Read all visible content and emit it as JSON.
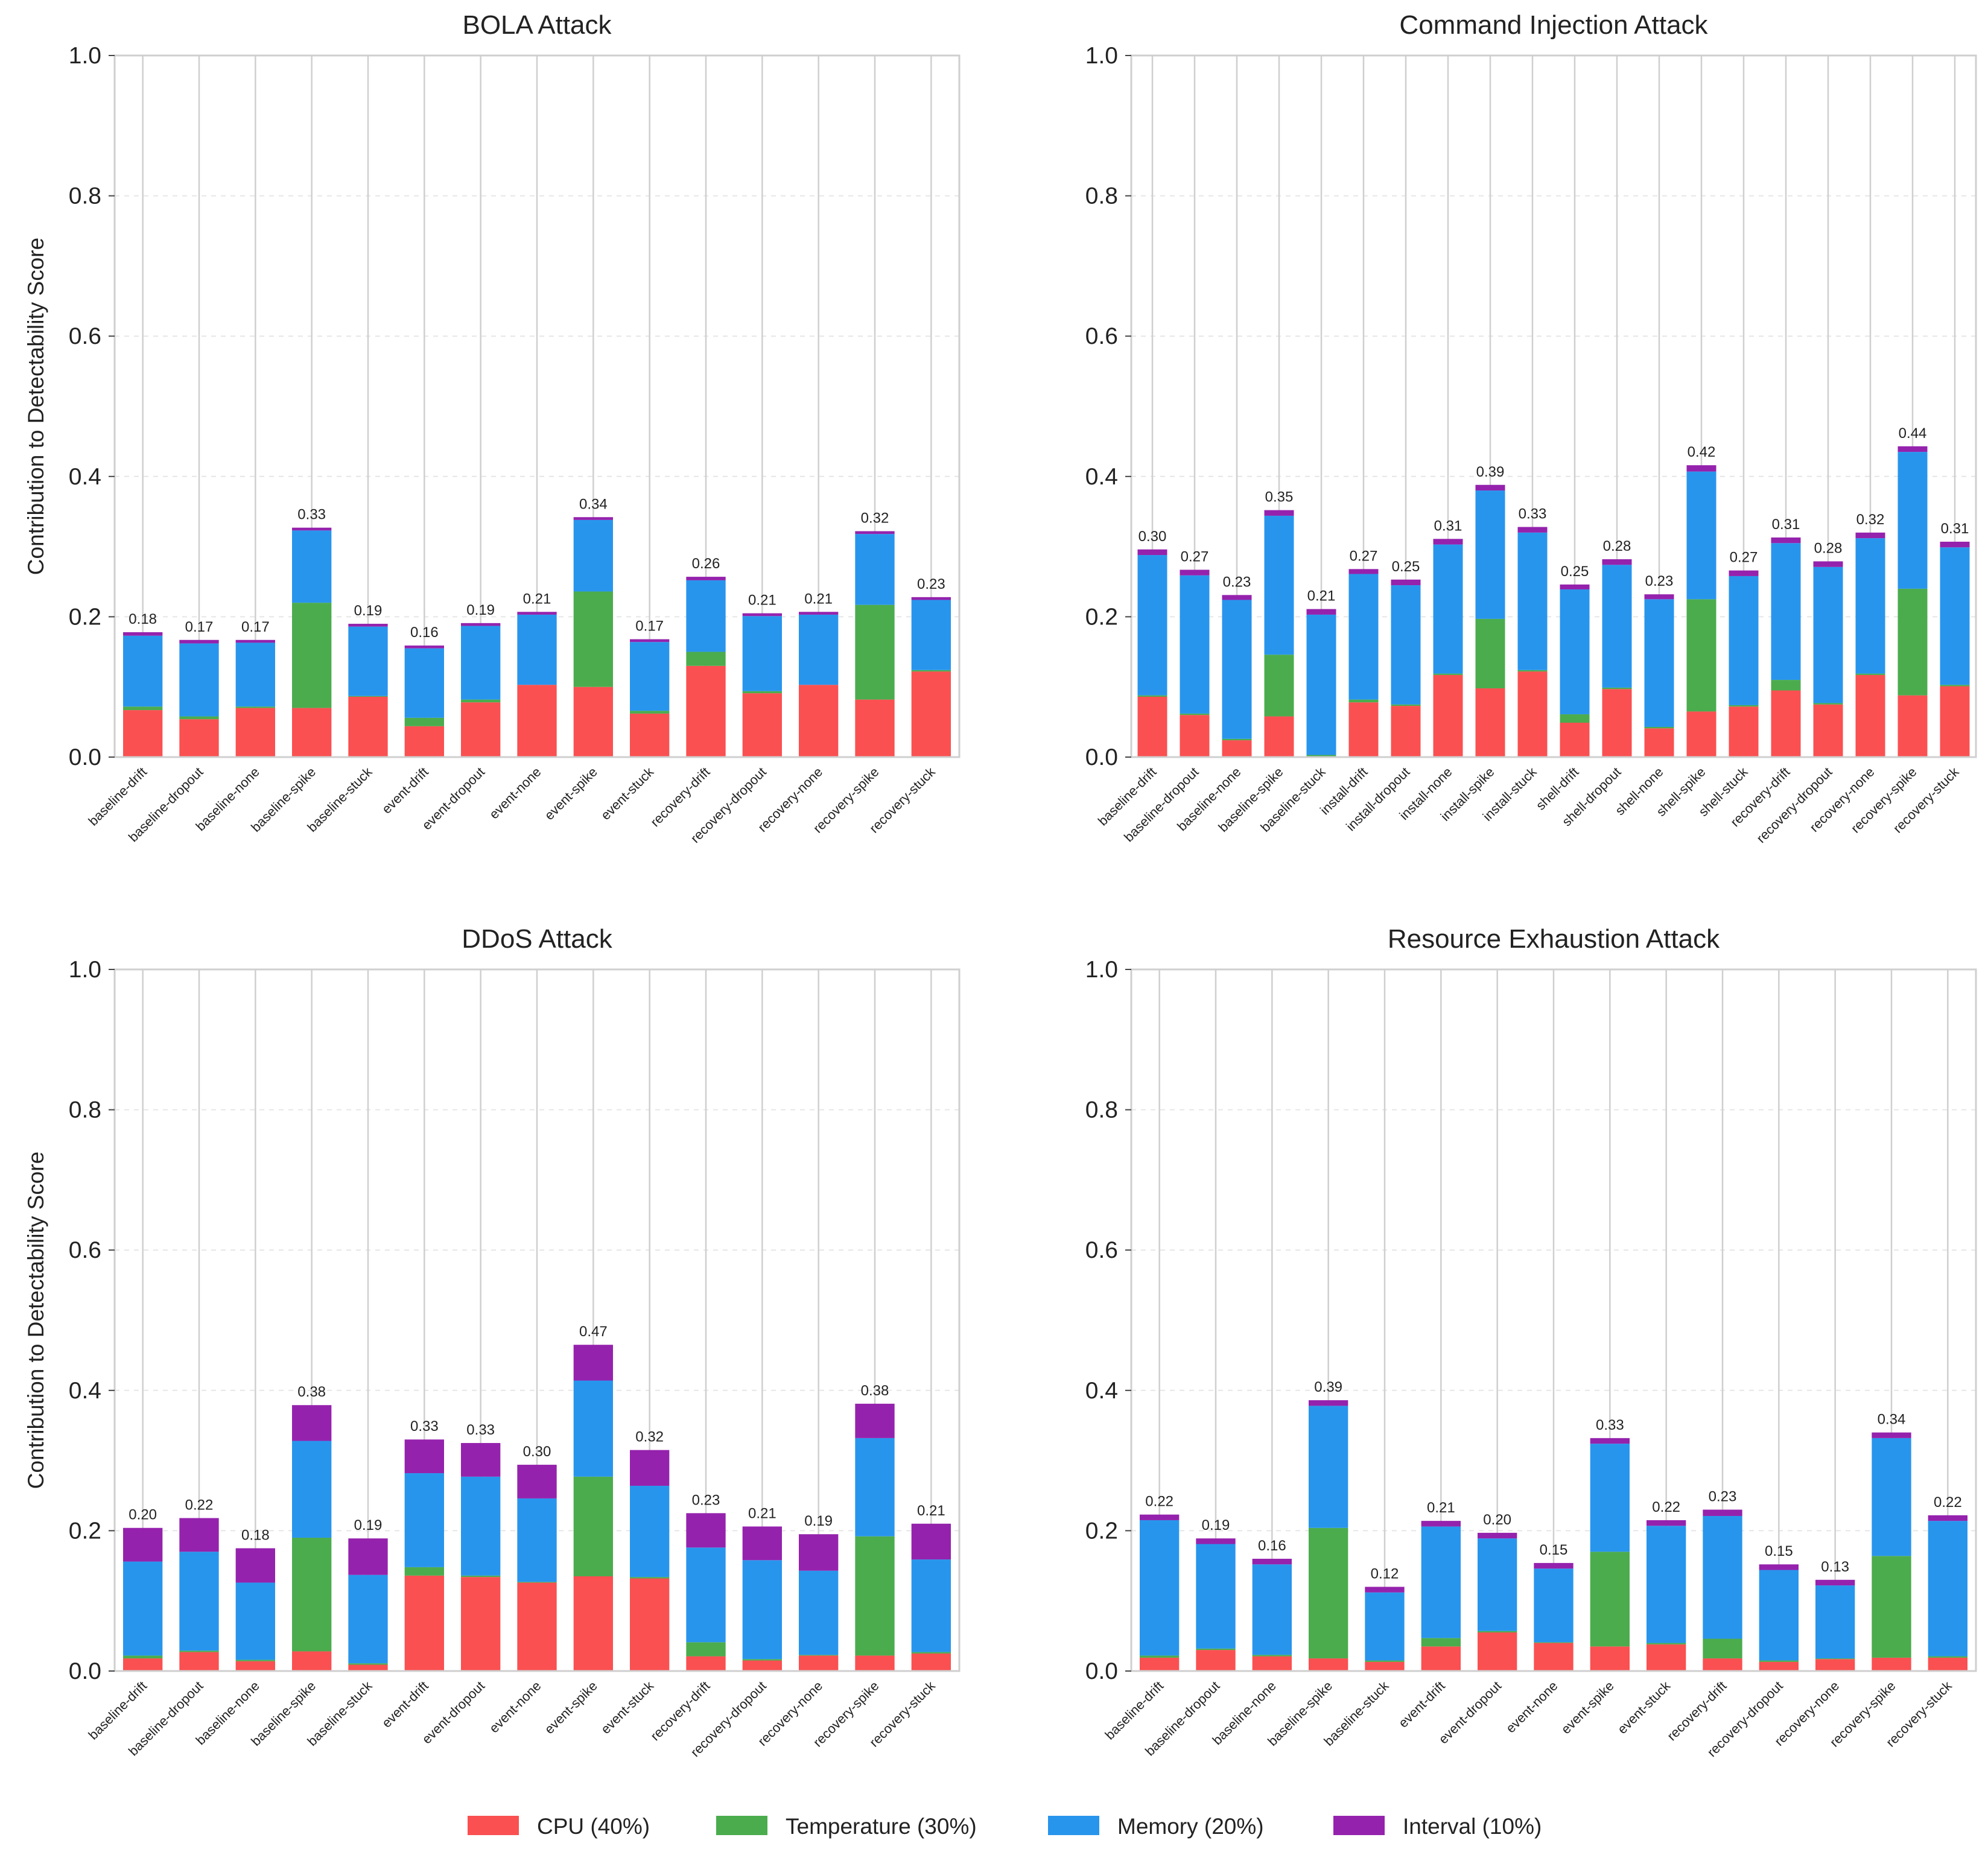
{
  "chart_data": [
    {
      "type": "bar",
      "stacked": true,
      "title": "BOLA Attack",
      "ylabel": "Contribution to Detectability Score",
      "xlabel": "",
      "ylim": [
        0,
        1.0
      ],
      "yticks": [
        "0.0",
        "0.2",
        "0.4",
        "0.6",
        "0.8",
        "1.0"
      ],
      "categories": [
        "baseline-drift",
        "baseline-dropout",
        "baseline-none",
        "baseline-spike",
        "baseline-stuck",
        "event-drift",
        "event-dropout",
        "event-none",
        "event-spike",
        "event-stuck",
        "recovery-drift",
        "recovery-dropout",
        "recovery-none",
        "recovery-spike",
        "recovery-stuck"
      ],
      "series": [
        {
          "name": "CPU (40%)",
          "values": [
            0.067,
            0.054,
            0.07,
            0.07,
            0.086,
            0.044,
            0.078,
            0.103,
            0.1,
            0.062,
            0.13,
            0.091,
            0.103,
            0.082,
            0.122
          ]
        },
        {
          "name": "Temperature (30%)",
          "values": [
            0.005,
            0.004,
            0.002,
            0.15,
            0.001,
            0.012,
            0.004,
            0.0,
            0.136,
            0.004,
            0.02,
            0.003,
            0.0,
            0.135,
            0.002
          ]
        },
        {
          "name": "Memory (20%)",
          "values": [
            0.101,
            0.104,
            0.091,
            0.103,
            0.099,
            0.099,
            0.105,
            0.1,
            0.102,
            0.098,
            0.102,
            0.107,
            0.1,
            0.101,
            0.1
          ]
        },
        {
          "name": "Interval (10%)",
          "values": [
            0.005,
            0.005,
            0.004,
            0.004,
            0.004,
            0.004,
            0.004,
            0.004,
            0.004,
            0.004,
            0.005,
            0.004,
            0.004,
            0.004,
            0.004
          ]
        }
      ],
      "totals": [
        "0.18",
        "0.17",
        "0.17",
        "0.33",
        "0.19",
        "0.16",
        "0.19",
        "0.21",
        "0.34",
        "0.17",
        "0.26",
        "0.21",
        "0.21",
        "0.32",
        "0.23"
      ]
    },
    {
      "type": "bar",
      "stacked": true,
      "title": "Command Injection Attack",
      "ylabel": "",
      "xlabel": "",
      "ylim": [
        0,
        1.0
      ],
      "yticks": [
        "0.0",
        "0.2",
        "0.4",
        "0.6",
        "0.8",
        "1.0"
      ],
      "categories": [
        "baseline-drift",
        "baseline-dropout",
        "baseline-none",
        "baseline-spike",
        "baseline-stuck",
        "install-drift",
        "install-dropout",
        "install-none",
        "install-spike",
        "install-stuck",
        "shell-drift",
        "shell-dropout",
        "shell-none",
        "shell-spike",
        "shell-stuck",
        "recovery-drift",
        "recovery-dropout",
        "recovery-none",
        "recovery-spike",
        "recovery-stuck"
      ],
      "series": [
        {
          "name": "CPU (40%)",
          "values": [
            0.086,
            0.06,
            0.024,
            0.058,
            0.001,
            0.078,
            0.073,
            0.117,
            0.098,
            0.122,
            0.049,
            0.097,
            0.041,
            0.065,
            0.072,
            0.095,
            0.075,
            0.117,
            0.088,
            0.101
          ]
        },
        {
          "name": "Temperature (30%)",
          "values": [
            0.002,
            0.002,
            0.002,
            0.088,
            0.002,
            0.004,
            0.002,
            0.002,
            0.099,
            0.002,
            0.012,
            0.002,
            0.002,
            0.16,
            0.002,
            0.015,
            0.002,
            0.002,
            0.152,
            0.002
          ]
        },
        {
          "name": "Memory (20%)",
          "values": [
            0.2,
            0.197,
            0.198,
            0.198,
            0.2,
            0.179,
            0.17,
            0.184,
            0.183,
            0.196,
            0.178,
            0.175,
            0.182,
            0.182,
            0.184,
            0.195,
            0.194,
            0.193,
            0.195,
            0.196
          ]
        },
        {
          "name": "Interval (10%)",
          "values": [
            0.008,
            0.008,
            0.007,
            0.008,
            0.008,
            0.007,
            0.008,
            0.008,
            0.008,
            0.008,
            0.007,
            0.008,
            0.007,
            0.009,
            0.008,
            0.008,
            0.008,
            0.008,
            0.008,
            0.008
          ]
        }
      ],
      "totals": [
        "0.30",
        "0.27",
        "0.23",
        "0.35",
        "0.21",
        "0.27",
        "0.25",
        "0.31",
        "0.39",
        "0.33",
        "0.25",
        "0.28",
        "0.23",
        "0.42",
        "0.27",
        "0.31",
        "0.28",
        "0.32",
        "0.44",
        "0.31"
      ]
    },
    {
      "type": "bar",
      "stacked": true,
      "title": "DDoS Attack",
      "ylabel": "Contribution to Detectability Score",
      "xlabel": "",
      "ylim": [
        0,
        1.0
      ],
      "yticks": [
        "0.0",
        "0.2",
        "0.4",
        "0.6",
        "0.8",
        "1.0"
      ],
      "categories": [
        "baseline-drift",
        "baseline-dropout",
        "baseline-none",
        "baseline-spike",
        "baseline-stuck",
        "event-drift",
        "event-dropout",
        "event-none",
        "event-spike",
        "event-stuck",
        "recovery-drift",
        "recovery-dropout",
        "recovery-none",
        "recovery-spike",
        "recovery-stuck"
      ],
      "series": [
        {
          "name": "CPU (40%)",
          "values": [
            0.018,
            0.027,
            0.014,
            0.028,
            0.009,
            0.136,
            0.134,
            0.126,
            0.135,
            0.132,
            0.021,
            0.015,
            0.022,
            0.022,
            0.025
          ]
        },
        {
          "name": "Temperature (30%)",
          "values": [
            0.004,
            0.002,
            0.002,
            0.162,
            0.002,
            0.012,
            0.002,
            0.001,
            0.142,
            0.002,
            0.02,
            0.002,
            0.001,
            0.17,
            0.002
          ]
        },
        {
          "name": "Memory (20%)",
          "values": [
            0.134,
            0.141,
            0.11,
            0.138,
            0.126,
            0.134,
            0.141,
            0.119,
            0.137,
            0.13,
            0.135,
            0.141,
            0.12,
            0.14,
            0.132
          ]
        },
        {
          "name": "Interval (10%)",
          "values": [
            0.048,
            0.048,
            0.049,
            0.051,
            0.052,
            0.048,
            0.048,
            0.048,
            0.051,
            0.051,
            0.049,
            0.048,
            0.052,
            0.049,
            0.051
          ]
        }
      ],
      "totals": [
        "0.20",
        "0.22",
        "0.18",
        "0.38",
        "0.19",
        "0.33",
        "0.33",
        "0.30",
        "0.47",
        "0.32",
        "0.23",
        "0.21",
        "0.19",
        "0.38",
        "0.21"
      ]
    },
    {
      "type": "bar",
      "stacked": true,
      "title": "Resource Exhaustion Attack",
      "ylabel": "",
      "xlabel": "",
      "ylim": [
        0,
        1.0
      ],
      "yticks": [
        "0.0",
        "0.2",
        "0.4",
        "0.6",
        "0.8",
        "1.0"
      ],
      "categories": [
        "baseline-drift",
        "baseline-dropout",
        "baseline-none",
        "baseline-spike",
        "baseline-stuck",
        "event-drift",
        "event-dropout",
        "event-none",
        "event-spike",
        "event-stuck",
        "recovery-drift",
        "recovery-dropout",
        "recovery-none",
        "recovery-spike",
        "recovery-stuck"
      ],
      "series": [
        {
          "name": "CPU (40%)",
          "values": [
            0.019,
            0.03,
            0.021,
            0.018,
            0.013,
            0.035,
            0.055,
            0.04,
            0.035,
            0.038,
            0.018,
            0.013,
            0.017,
            0.019,
            0.019
          ]
        },
        {
          "name": "Temperature (30%)",
          "values": [
            0.003,
            0.002,
            0.002,
            0.186,
            0.002,
            0.012,
            0.002,
            0.001,
            0.135,
            0.002,
            0.028,
            0.002,
            0.001,
            0.145,
            0.002
          ]
        },
        {
          "name": "Memory (20%)",
          "values": [
            0.193,
            0.149,
            0.129,
            0.174,
            0.097,
            0.159,
            0.132,
            0.105,
            0.154,
            0.167,
            0.175,
            0.129,
            0.104,
            0.168,
            0.193
          ]
        },
        {
          "name": "Interval (10%)",
          "values": [
            0.008,
            0.008,
            0.008,
            0.008,
            0.008,
            0.008,
            0.008,
            0.008,
            0.008,
            0.008,
            0.009,
            0.008,
            0.008,
            0.008,
            0.008
          ]
        }
      ],
      "totals": [
        "0.22",
        "0.19",
        "0.16",
        "0.39",
        "0.12",
        "0.21",
        "0.20",
        "0.15",
        "0.33",
        "0.22",
        "0.23",
        "0.15",
        "0.13",
        "0.34",
        "0.22"
      ]
    }
  ],
  "legend": {
    "items": [
      {
        "label": "CPU (40%)",
        "color": "#fa5051"
      },
      {
        "label": "Temperature (30%)",
        "color": "#4bac4d"
      },
      {
        "label": "Memory (20%)",
        "color": "#2895ed"
      },
      {
        "label": "Interval (10%)",
        "color": "#9522ad"
      }
    ]
  }
}
